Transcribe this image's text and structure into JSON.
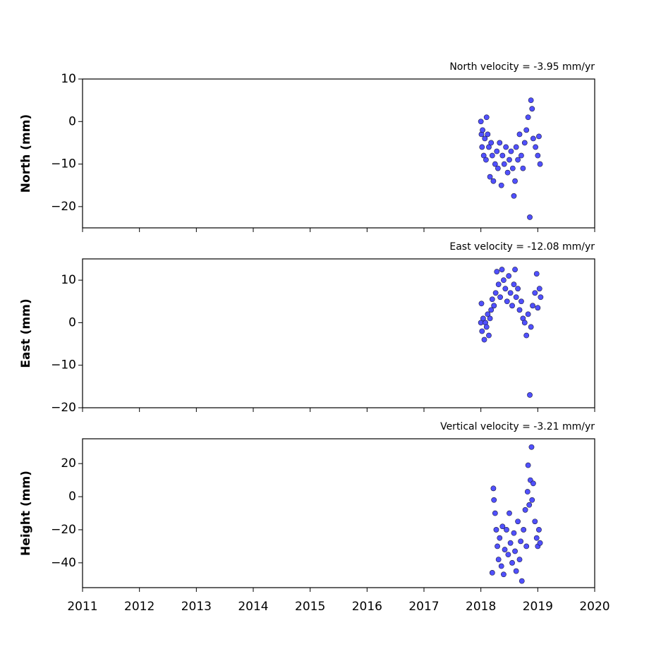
{
  "chart_data": [
    {
      "type": "scatter",
      "title": "North velocity = -3.95 mm/yr",
      "ylabel": "North (mm)",
      "color": "#5050ff",
      "edgecolor": "#1a1a40",
      "xlim": [
        2011,
        2020
      ],
      "xticks": [
        2011,
        2012,
        2013,
        2014,
        2015,
        2016,
        2017,
        2018,
        2019,
        2020
      ],
      "show_xtick_labels": false,
      "ylim": [
        -25,
        10
      ],
      "yticks": [
        {
          "value": -20,
          "label": "−20"
        },
        {
          "value": -10,
          "label": "−10"
        },
        0,
        10
      ],
      "x": [
        2018.0,
        2018.01,
        2018.02,
        2018.03,
        2018.05,
        2018.07,
        2018.09,
        2018.1,
        2018.12,
        2018.14,
        2018.16,
        2018.18,
        2018.2,
        2018.22,
        2018.25,
        2018.28,
        2018.3,
        2018.33,
        2018.36,
        2018.38,
        2018.41,
        2018.44,
        2018.47,
        2018.5,
        2018.53,
        2018.56,
        2018.58,
        2018.6,
        2018.62,
        2018.65,
        2018.68,
        2018.71,
        2018.74,
        2018.77,
        2018.8,
        2018.83,
        2018.86,
        2018.88,
        2018.9,
        2018.92,
        2018.96,
        2019.0,
        2019.02,
        2019.04
      ],
      "values": [
        0,
        -3,
        -6,
        -2,
        -8,
        -4,
        -9,
        1,
        -3,
        -6,
        -13,
        -5,
        -8,
        -14,
        -10,
        -7,
        -11,
        -5,
        -15,
        -8,
        -10,
        -6,
        -12,
        -9,
        -7,
        -11,
        -17.5,
        -14,
        -6,
        -9,
        -3,
        -8,
        -11,
        -5,
        -2,
        1,
        -22.5,
        5,
        3,
        -4,
        -6,
        -8,
        -3.5,
        -10
      ]
    },
    {
      "type": "scatter",
      "title": "East velocity = -12.08 mm/yr",
      "ylabel": "East (mm)",
      "color": "#5050ff",
      "edgecolor": "#1a1a40",
      "xlim": [
        2011,
        2020
      ],
      "xticks": [
        2011,
        2012,
        2013,
        2014,
        2015,
        2016,
        2017,
        2018,
        2019,
        2020
      ],
      "show_xtick_labels": false,
      "ylim": [
        -20,
        15
      ],
      "yticks": [
        {
          "value": -20,
          "label": "−20"
        },
        {
          "value": -10,
          "label": "−10"
        },
        0,
        10
      ],
      "x": [
        2018.0,
        2018.01,
        2018.02,
        2018.04,
        2018.06,
        2018.08,
        2018.1,
        2018.12,
        2018.14,
        2018.16,
        2018.18,
        2018.2,
        2018.23,
        2018.26,
        2018.28,
        2018.31,
        2018.34,
        2018.37,
        2018.4,
        2018.43,
        2018.46,
        2018.49,
        2018.52,
        2018.55,
        2018.58,
        2018.6,
        2018.62,
        2018.65,
        2018.68,
        2018.71,
        2018.74,
        2018.77,
        2018.8,
        2018.83,
        2018.86,
        2018.88,
        2018.91,
        2018.95,
        2018.98,
        2019.0,
        2019.03,
        2019.05
      ],
      "values": [
        0,
        4.5,
        -2,
        1,
        -4,
        0,
        -1,
        2,
        -3,
        1,
        3,
        5.5,
        4,
        7,
        12,
        9,
        6,
        12.5,
        10,
        8,
        5,
        11,
        7,
        4,
        9,
        12.5,
        6,
        8,
        3,
        5,
        1,
        0,
        -3,
        2,
        -17,
        -1,
        4,
        7,
        11.5,
        3.5,
        8,
        6
      ]
    },
    {
      "type": "scatter",
      "title": "Vertical velocity = -3.21 mm/yr",
      "ylabel": "Height (mm)",
      "color": "#5050ff",
      "edgecolor": "#1a1a40",
      "xlim": [
        2011,
        2020
      ],
      "xticks": [
        2011,
        2012,
        2013,
        2014,
        2015,
        2016,
        2017,
        2018,
        2019,
        2020
      ],
      "show_xtick_labels": true,
      "ylim": [
        -55,
        35
      ],
      "yticks": [
        {
          "value": -40,
          "label": "−40"
        },
        {
          "value": -20,
          "label": "−20"
        },
        0,
        20
      ],
      "x": [
        2018.2,
        2018.22,
        2018.23,
        2018.25,
        2018.27,
        2018.29,
        2018.31,
        2018.33,
        2018.36,
        2018.38,
        2018.4,
        2018.42,
        2018.45,
        2018.48,
        2018.5,
        2018.52,
        2018.55,
        2018.58,
        2018.6,
        2018.62,
        2018.65,
        2018.68,
        2018.7,
        2018.72,
        2018.75,
        2018.78,
        2018.8,
        2018.82,
        2018.83,
        2018.85,
        2018.87,
        2018.89,
        2018.9,
        2018.92,
        2018.95,
        2018.98,
        2019.0,
        2019.02,
        2019.04
      ],
      "values": [
        -46,
        5,
        -2,
        -10,
        -20,
        -30,
        -38,
        -25,
        -42,
        -18,
        -47,
        -32,
        -20,
        -35,
        -10,
        -28,
        -40,
        -22,
        -33,
        -45,
        -15,
        -38,
        -27,
        -51,
        -20,
        -8,
        -30,
        3,
        19,
        -5,
        10,
        30,
        -2,
        8,
        -15,
        -25,
        -30,
        -20,
        -28
      ]
    }
  ]
}
